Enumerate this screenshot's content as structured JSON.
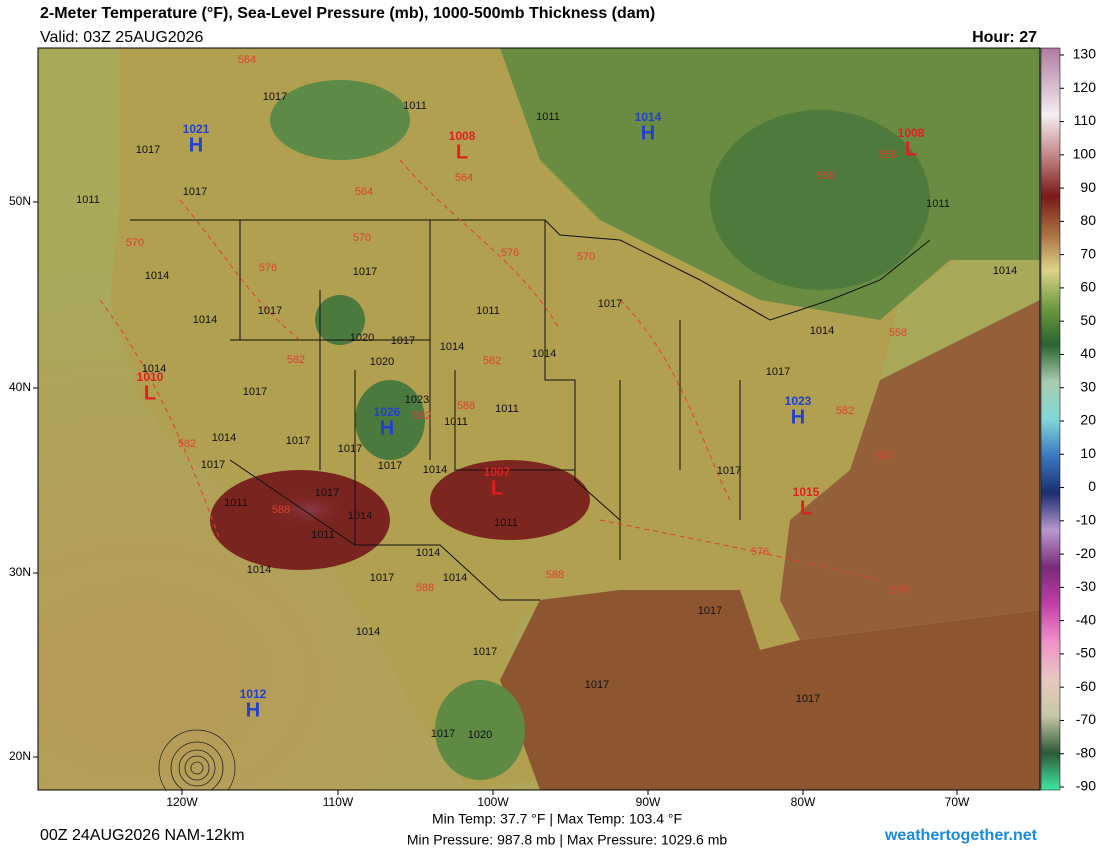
{
  "header": {
    "title": "2-Meter Temperature (°F), Sea-Level Pressure (mb), 1000-500mb Thickness (dam)",
    "valid": "Valid: 03Z 25AUG2026",
    "hour": "Hour: 27"
  },
  "latitudes": [
    "50N",
    "40N",
    "30N",
    "20N"
  ],
  "longitudes": [
    "120W",
    "110W",
    "100W",
    "90W",
    "80W",
    "70W"
  ],
  "colorbar": {
    "ticks": [
      130,
      120,
      110,
      100,
      90,
      80,
      70,
      60,
      50,
      40,
      30,
      20,
      10,
      0,
      -10,
      -20,
      -30,
      -40,
      -50,
      -60,
      -70,
      -80,
      -90
    ]
  },
  "pressure_centers": [
    {
      "symbol": "H",
      "value": "1021"
    },
    {
      "symbol": "L",
      "value": "1008"
    },
    {
      "symbol": "H",
      "value": "1014"
    },
    {
      "symbol": "L",
      "value": "1008"
    },
    {
      "symbol": "L",
      "value": "1010"
    },
    {
      "symbol": "H",
      "value": "1026"
    },
    {
      "symbol": "L",
      "value": "1007"
    },
    {
      "symbol": "H",
      "value": "1023"
    },
    {
      "symbol": "L",
      "value": "1015"
    },
    {
      "symbol": "H",
      "value": "1012"
    }
  ],
  "isobar_labels": [
    "1017",
    "1011",
    "1011",
    "1017",
    "1017",
    "1011",
    "1014",
    "1017",
    "1017",
    "1014",
    "1017",
    "1011",
    "1020",
    "1017",
    "1014",
    "1014",
    "1020",
    "1014",
    "1017",
    "1023",
    "1011",
    "1011",
    "1014",
    "1014",
    "1011",
    "1017",
    "1014",
    "1017",
    "1017",
    "1017",
    "1017",
    "1014",
    "1017",
    "1011",
    "1017",
    "1014",
    "1011",
    "1011",
    "1014",
    "1014",
    "1017",
    "1014",
    "1017",
    "1014",
    "1017",
    "1017",
    "1017",
    "1017",
    "1020"
  ],
  "thickness_labels": [
    "564",
    "564",
    "564",
    "558",
    "558",
    "570",
    "570",
    "576",
    "576",
    "570",
    "582",
    "582",
    "582",
    "588",
    "582",
    "588",
    "588",
    "588",
    "576",
    "582",
    "570",
    "558",
    "576"
  ],
  "footer": {
    "temps": "Min Temp: 37.7 °F | Max Temp: 103.4 °F",
    "pressures": "Min Pressure: 987.8 mb | Max Pressure: 1029.6 mb",
    "model": "00Z 24AUG2026 NAM-12km",
    "site": "weathertogether.net"
  }
}
